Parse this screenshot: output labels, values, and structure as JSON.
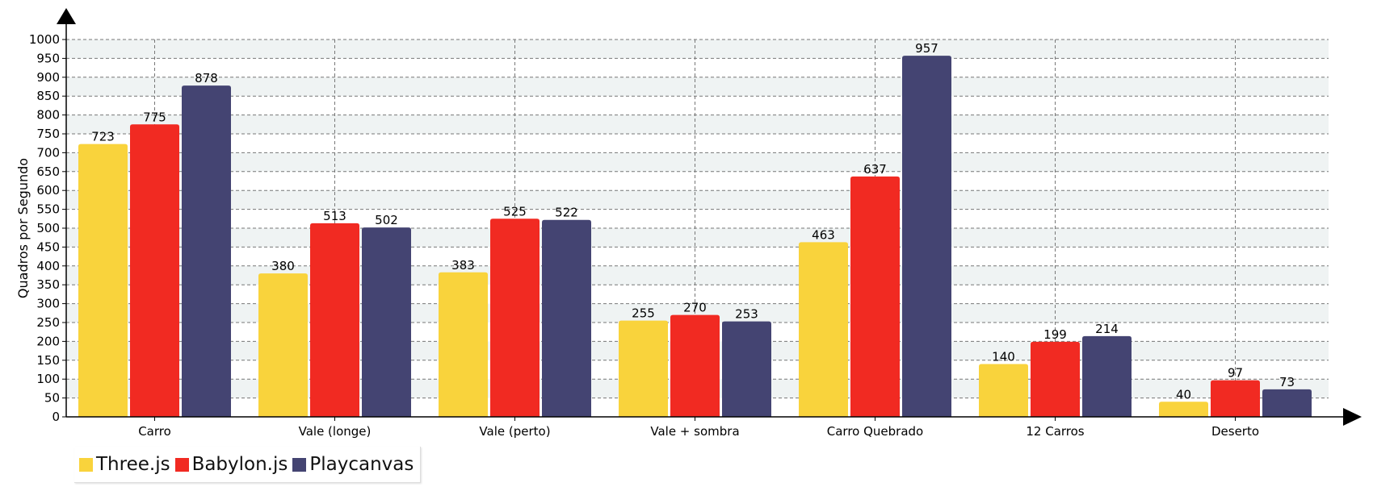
{
  "chart_data": {
    "type": "bar",
    "title": "",
    "xlabel": "",
    "ylabel": "Quadros por Segundo",
    "ylim": [
      0,
      1000
    ],
    "ytick_step": 50,
    "grid": true,
    "legend_position": "bottom-left",
    "categories": [
      "Carro",
      "Vale (longe)",
      "Vale (perto)",
      "Vale + sombra",
      "Carro Quebrado",
      "12 Carros",
      "Deserto"
    ],
    "series": [
      {
        "name": "Three.js",
        "color": "#f9d33c",
        "values": [
          723,
          380,
          383,
          255,
          463,
          140,
          40
        ]
      },
      {
        "name": "Babylon.js",
        "color": "#f12a22",
        "values": [
          775,
          513,
          525,
          270,
          637,
          199,
          97
        ]
      },
      {
        "name": "Playcanvas",
        "color": "#444472",
        "values": [
          878,
          502,
          522,
          253,
          957,
          214,
          73
        ]
      }
    ]
  }
}
